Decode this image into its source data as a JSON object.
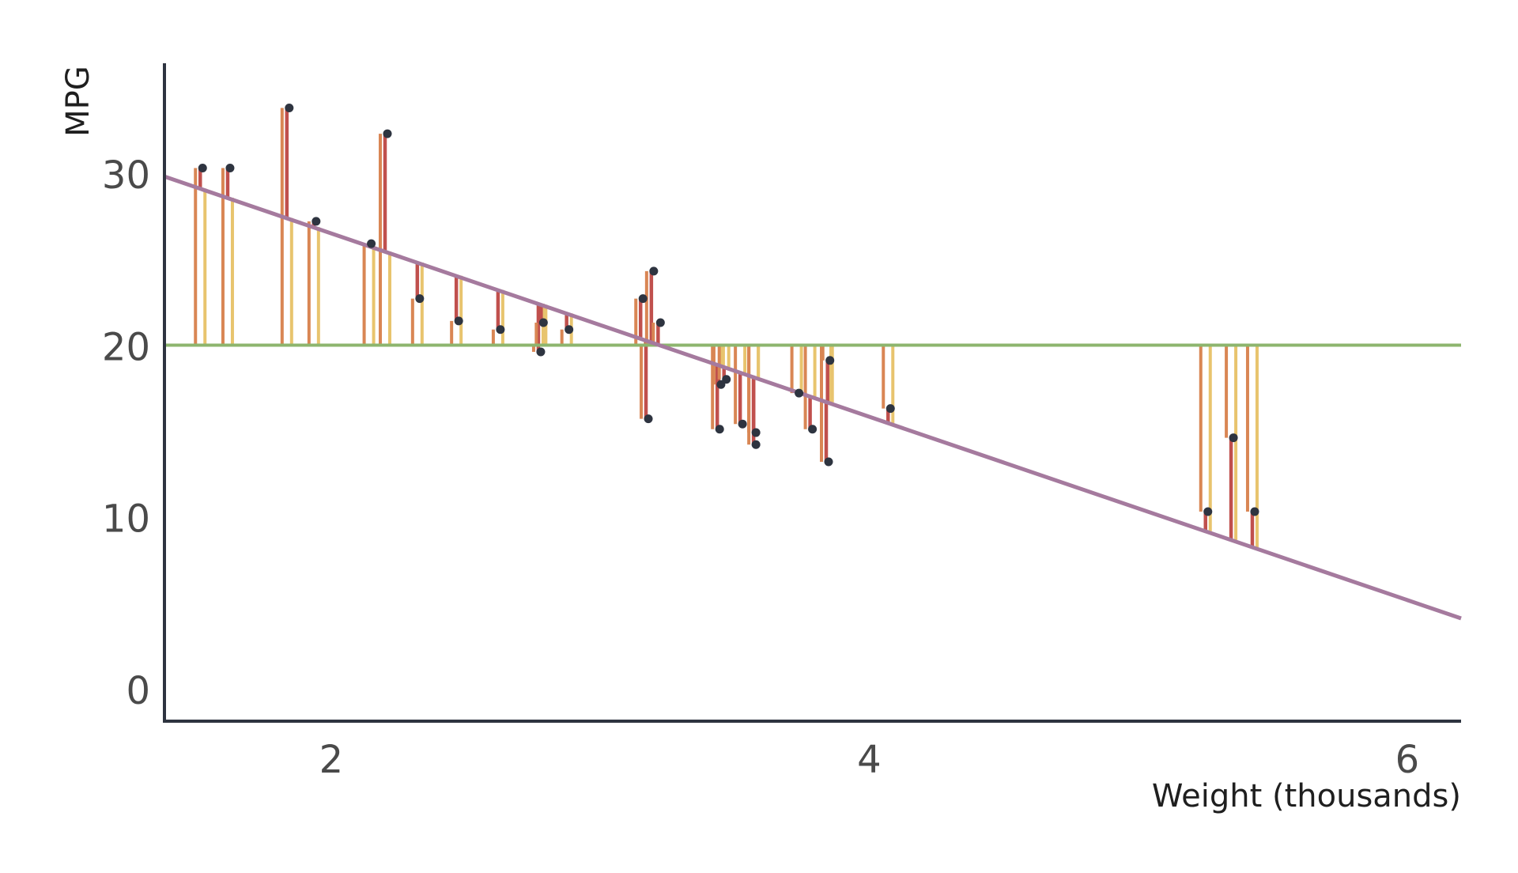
{
  "chart_data": {
    "type": "scatter",
    "title": "",
    "xlabel": "Weight (thousands)",
    "ylabel": "MPG",
    "xlim": [
      1.38,
      6.2
    ],
    "ylim": [
      -1.8,
      36.5
    ],
    "x_ticks": [
      2,
      4,
      6
    ],
    "y_ticks": [
      0,
      10,
      20,
      30
    ],
    "grid": false,
    "colors": {
      "axis": "#2e3440",
      "points": "#2e3440",
      "mean_line": "#8db56e",
      "regression_line": "#a57a9e",
      "residual_to_fit": "#c0504d",
      "deviation_to_mean": "#d98654",
      "fit_minus_mean": "#e8c46e"
    },
    "mean_line": {
      "y": 20.09
    },
    "regression_line": {
      "intercept": 37.29,
      "slope": -5.34
    },
    "points": [
      {
        "x": 1.513,
        "y": 30.4
      },
      {
        "x": 1.615,
        "y": 30.4
      },
      {
        "x": 1.835,
        "y": 33.9
      },
      {
        "x": 1.935,
        "y": 27.3
      },
      {
        "x": 2.14,
        "y": 26.0
      },
      {
        "x": 2.2,
        "y": 32.4
      },
      {
        "x": 2.32,
        "y": 22.8
      },
      {
        "x": 2.465,
        "y": 21.5
      },
      {
        "x": 2.62,
        "y": 21.0
      },
      {
        "x": 2.77,
        "y": 19.7
      },
      {
        "x": 2.78,
        "y": 21.4
      },
      {
        "x": 2.875,
        "y": 21.0
      },
      {
        "x": 3.15,
        "y": 22.8
      },
      {
        "x": 3.17,
        "y": 15.8
      },
      {
        "x": 3.19,
        "y": 24.4
      },
      {
        "x": 3.215,
        "y": 21.4
      },
      {
        "x": 3.435,
        "y": 15.2
      },
      {
        "x": 3.44,
        "y": 17.8
      },
      {
        "x": 3.46,
        "y": 18.1
      },
      {
        "x": 3.52,
        "y": 15.5
      },
      {
        "x": 3.57,
        "y": 14.3
      },
      {
        "x": 3.57,
        "y": 15.0
      },
      {
        "x": 3.73,
        "y": 17.3
      },
      {
        "x": 3.78,
        "y": 15.2
      },
      {
        "x": 3.84,
        "y": 13.3
      },
      {
        "x": 3.845,
        "y": 19.2
      },
      {
        "x": 4.07,
        "y": 16.4
      },
      {
        "x": 5.25,
        "y": 10.4
      },
      {
        "x": 5.345,
        "y": 14.7
      },
      {
        "x": 5.424,
        "y": 10.4
      }
    ]
  }
}
